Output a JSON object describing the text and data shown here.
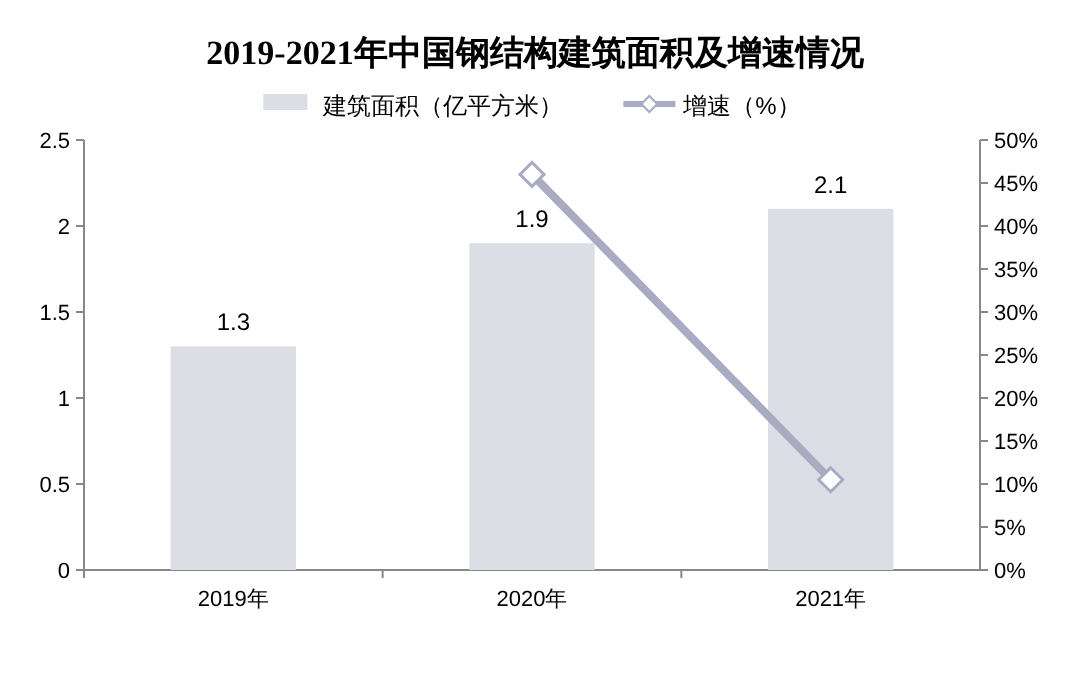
{
  "chart_data": {
    "type": "bar",
    "title": "2019-2021年中国钢结构建筑面积及增速情况",
    "categories": [
      "2019年",
      "2020年",
      "2021年"
    ],
    "series": [
      {
        "name": "建筑面积（亿平方米）",
        "color": "#dcdee6",
        "values": [
          1.3,
          1.9,
          2.1
        ],
        "value_labels": [
          "1.3",
          "1.9",
          "2.1"
        ]
      },
      {
        "name": "增速（%）",
        "type": "line",
        "axis": "y2",
        "color": "#a9abc3",
        "marker": "diamond",
        "values": [
          null,
          46,
          10.5
        ]
      }
    ],
    "ylim": [
      0,
      2.5
    ],
    "yticks": [
      0,
      0.5,
      1,
      1.5,
      2,
      2.5
    ],
    "y2lim": [
      0,
      50
    ],
    "y2ticks": [
      {
        "value": 0,
        "label": "0%"
      },
      {
        "value": 5,
        "label": "5%"
      },
      {
        "value": 10,
        "label": "10%"
      },
      {
        "value": 15,
        "label": "15%"
      },
      {
        "value": 20,
        "label": "20%"
      },
      {
        "value": 25,
        "label": "25%"
      },
      {
        "value": 30,
        "label": "30%"
      },
      {
        "value": 35,
        "label": "35%"
      },
      {
        "value": 40,
        "label": "40%"
      },
      {
        "value": 45,
        "label": "45%"
      },
      {
        "value": 50,
        "label": "50%"
      }
    ],
    "legend": "top",
    "grid": false
  }
}
